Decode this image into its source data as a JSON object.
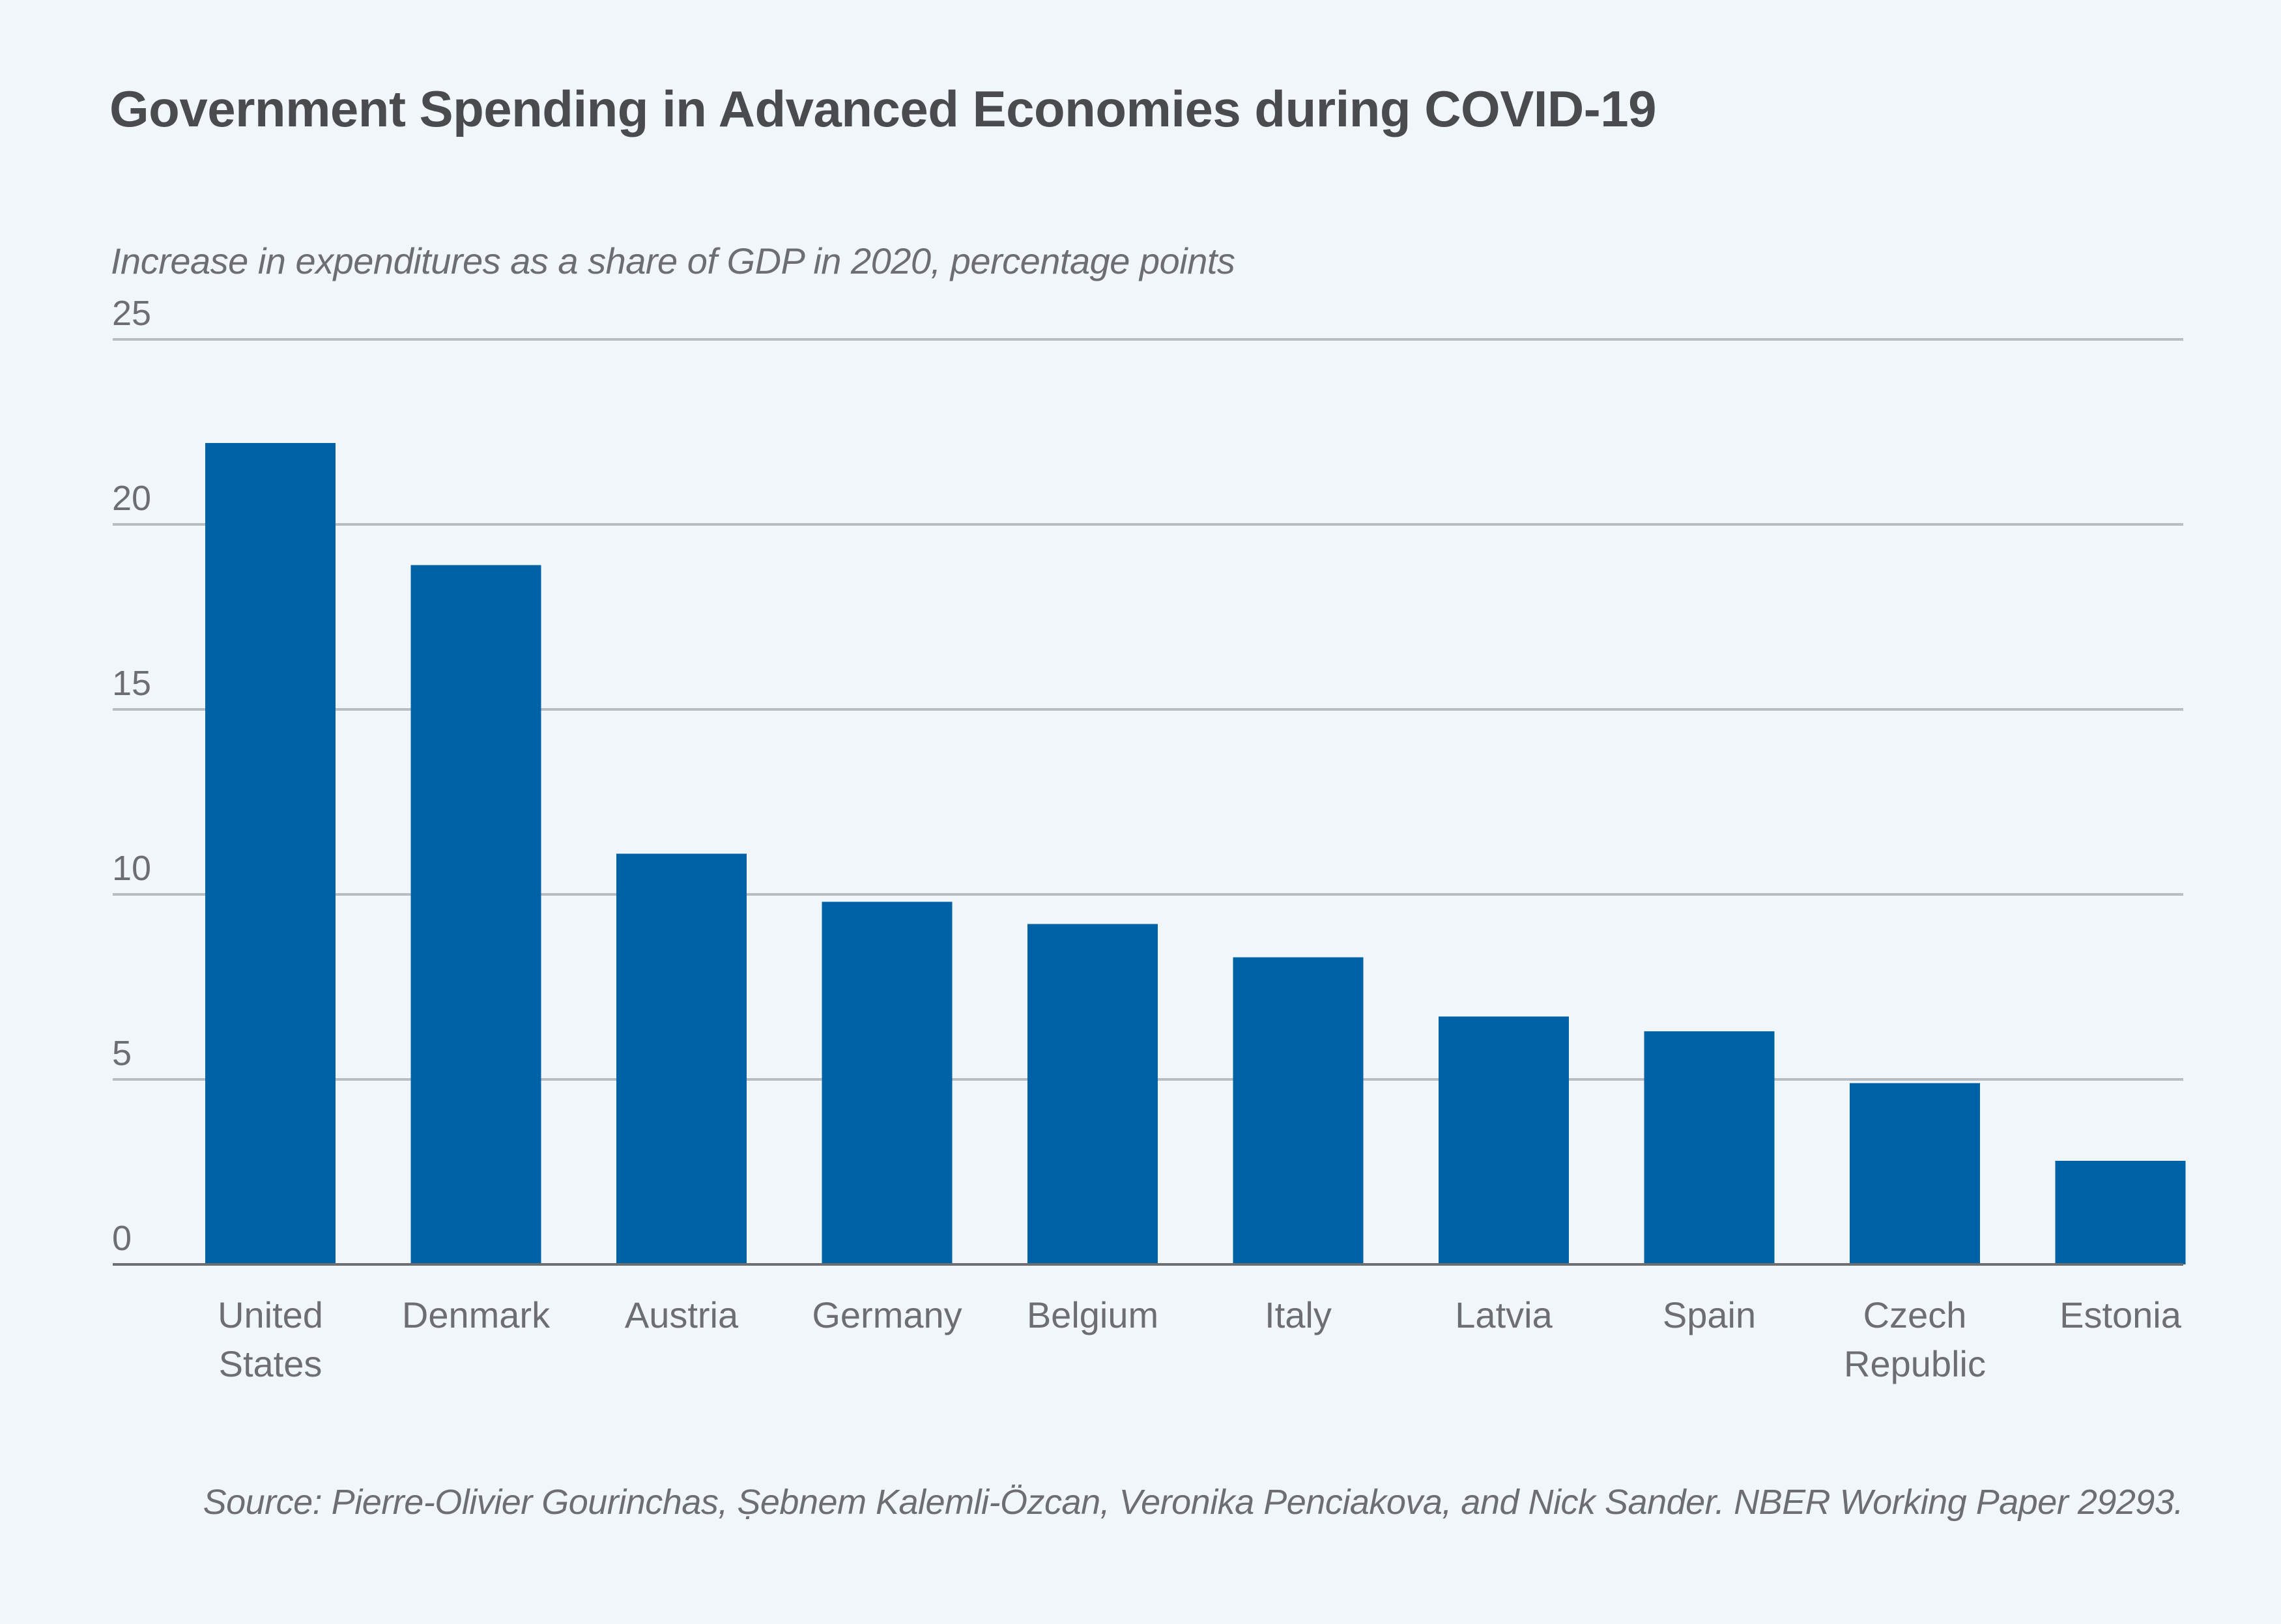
{
  "title": "Government Spending in Advanced Economies during COVID-19",
  "subtitle": "Increase in expenditures as a share of GDP in 2020, percentage points",
  "source": "Source: Pierre-Olivier Gourinchas, Ṣebnem Kalemli-Özcan, Veronika Penciakova, and Nick Sander. NBER Working Paper 29293.",
  "colors": {
    "background": "#f1f6fa",
    "bar": "#0062a6",
    "gridline": "#b9bcc0",
    "baseline": "#6d6e72",
    "text": "#6d6e72",
    "title": "#4a4b4e"
  },
  "chart_data": {
    "type": "bar",
    "title": "Government Spending in Advanced Economies during COVID-19",
    "subtitle": "Increase in expenditures as a share of GDP in 2020, percentage points",
    "xlabel": "",
    "ylabel": "Increase in expenditures as a share of GDP in 2020, percentage points",
    "categories": [
      [
        "United",
        "States"
      ],
      [
        "Denmark"
      ],
      [
        "Austria"
      ],
      [
        "Germany"
      ],
      [
        "Belgium"
      ],
      [
        "Italy"
      ],
      [
        "Latvia"
      ],
      [
        "Spain"
      ],
      [
        "Czech",
        "Republic"
      ],
      [
        "Estonia"
      ]
    ],
    "values": [
      22.2,
      18.9,
      11.1,
      9.8,
      9.2,
      8.3,
      6.7,
      6.3,
      4.9,
      2.8
    ],
    "ylim": [
      0,
      25
    ],
    "yticks": [
      0,
      5,
      10,
      15,
      20,
      25
    ],
    "grid": true,
    "legend": "none",
    "source": "Source: Pierre-Olivier Gourinchas, Ṣebnem Kalemli-Özcan, Veronika Penciakova, and Nick Sander. NBER Working Paper 29293."
  }
}
